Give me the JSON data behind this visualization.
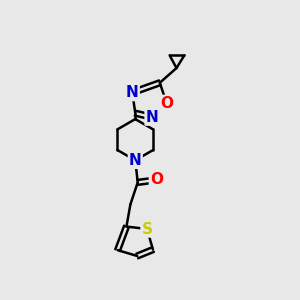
{
  "background_color": "#e8e8e8",
  "bond_color": "#000000",
  "bond_width": 1.8,
  "atom_colors": {
    "N": "#0000cc",
    "O": "#ff0000",
    "S": "#cccc00",
    "C": "#000000"
  }
}
